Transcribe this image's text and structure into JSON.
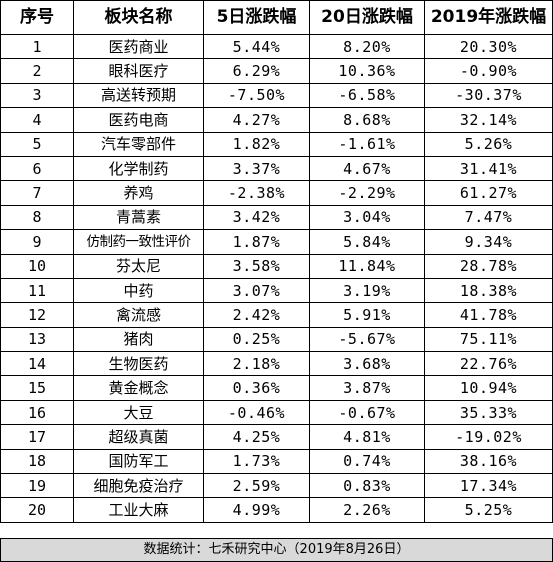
{
  "headers": [
    "序号",
    "板块名称",
    "5日涨跌幅",
    "20日涨跌幅",
    "2019年涨跌幅"
  ],
  "rows": [
    {
      "idx": "1",
      "name": "医药商业",
      "d5": "5.44%",
      "d20": "8.20%",
      "ytd": "20.30%"
    },
    {
      "idx": "2",
      "name": "眼科医疗",
      "d5": "6.29%",
      "d20": "10.36%",
      "ytd": "-0.90%"
    },
    {
      "idx": "3",
      "name": "高送转预期",
      "d5": "-7.50%",
      "d20": "-6.58%",
      "ytd": "-30.37%"
    },
    {
      "idx": "4",
      "name": "医药电商",
      "d5": "4.27%",
      "d20": "8.68%",
      "ytd": "32.14%"
    },
    {
      "idx": "5",
      "name": "汽车零部件",
      "d5": "1.82%",
      "d20": "-1.61%",
      "ytd": "5.26%"
    },
    {
      "idx": "6",
      "name": "化学制药",
      "d5": "3.37%",
      "d20": "4.67%",
      "ytd": "31.41%"
    },
    {
      "idx": "7",
      "name": "养鸡",
      "d5": "-2.38%",
      "d20": "-2.29%",
      "ytd": "61.27%"
    },
    {
      "idx": "8",
      "name": "青蒿素",
      "d5": "3.42%",
      "d20": "3.04%",
      "ytd": "7.47%"
    },
    {
      "idx": "9",
      "name": "仿制药一致性评价",
      "d5": "1.87%",
      "d20": "5.84%",
      "ytd": "9.34%"
    },
    {
      "idx": "10",
      "name": "芬太尼",
      "d5": "3.58%",
      "d20": "11.84%",
      "ytd": "28.78%"
    },
    {
      "idx": "11",
      "name": "中药",
      "d5": "3.07%",
      "d20": "3.19%",
      "ytd": "18.38%"
    },
    {
      "idx": "12",
      "name": "禽流感",
      "d5": "2.42%",
      "d20": "5.91%",
      "ytd": "41.78%"
    },
    {
      "idx": "13",
      "name": "猪肉",
      "d5": "0.25%",
      "d20": "-5.67%",
      "ytd": "75.11%"
    },
    {
      "idx": "14",
      "name": "生物医药",
      "d5": "2.18%",
      "d20": "3.68%",
      "ytd": "22.76%"
    },
    {
      "idx": "15",
      "name": "黄金概念",
      "d5": "0.36%",
      "d20": "3.87%",
      "ytd": "10.94%"
    },
    {
      "idx": "16",
      "name": "大豆",
      "d5": "-0.46%",
      "d20": "-0.67%",
      "ytd": "35.33%"
    },
    {
      "idx": "17",
      "name": "超级真菌",
      "d5": "4.25%",
      "d20": "4.81%",
      "ytd": "-19.02%"
    },
    {
      "idx": "18",
      "name": "国防军工",
      "d5": "1.73%",
      "d20": "0.74%",
      "ytd": "38.16%"
    },
    {
      "idx": "19",
      "name": "细胞免疫治疗",
      "d5": "2.59%",
      "d20": "0.83%",
      "ytd": "17.34%"
    },
    {
      "idx": "20",
      "name": "工业大麻",
      "d5": "4.99%",
      "d20": "2.26%",
      "ytd": "5.25%"
    }
  ],
  "footer": "数据统计：七禾研究中心（2019年8月26日）"
}
